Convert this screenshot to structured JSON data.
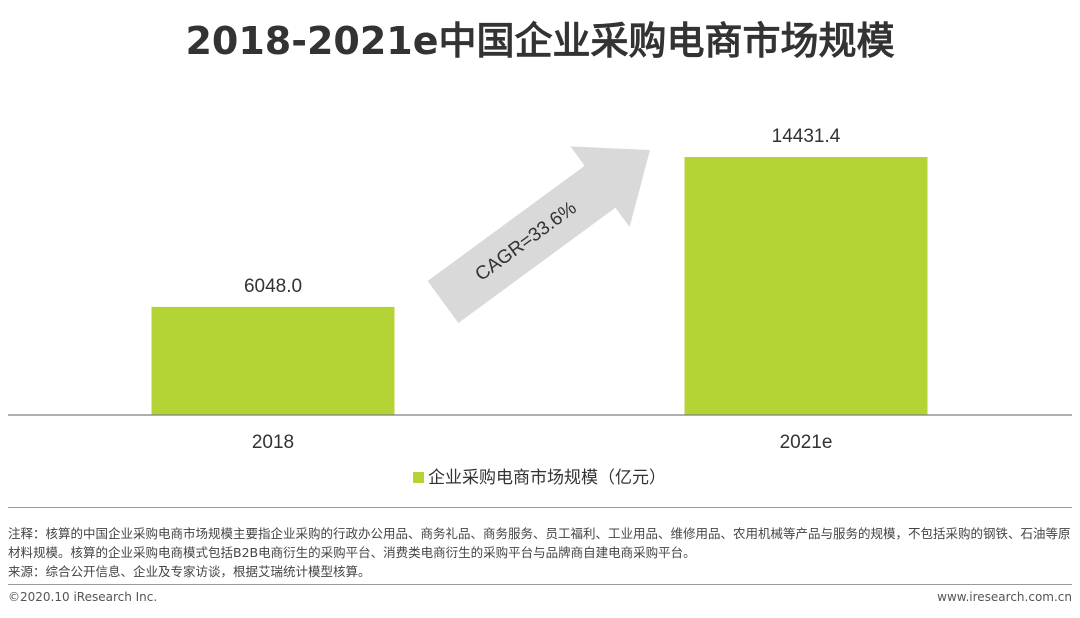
{
  "chart_data": {
    "type": "bar",
    "title": "2018-2021e中国企业采购电商市场规模",
    "categories": [
      "2018",
      "2021e"
    ],
    "series": [
      {
        "name": "企业采购电商市场规模（亿元）",
        "values": [
          6048.0,
          14431.4
        ],
        "labels": [
          "6048.0",
          "14431.4"
        ]
      }
    ],
    "ylim": [
      0,
      17000
    ],
    "grid": false,
    "legend": "bottom-center",
    "annotation": "CAGR=33.6%",
    "bar_color": "#b4d334",
    "arrow_color": "#d9d9d9"
  },
  "footer": {
    "note": "注释：核算的中国企业采购电商市场规模主要指企业采购的行政办公用品、商务礼品、商务服务、员工福利、工业用品、维修用品、农用机械等产品与服务的规模，不包括采购的钢铁、石油等原材料规模。核算的企业采购电商模式包括B2B电商衍生的采购平台、消费类电商衍生的采购平台与品牌商自建电商采购平台。",
    "source": "来源：综合公开信息、企业及专家访谈，根据艾瑞统计模型核算。",
    "copyright": "©2020.10 iResearch Inc.",
    "website": "www.iresearch.com.cn"
  }
}
